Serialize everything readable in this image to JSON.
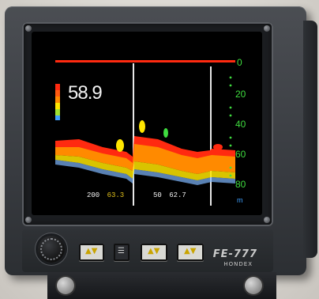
{
  "device": {
    "model_label": "FE-777",
    "brand_label": "HONDEX",
    "bezel_color": "#3f4247",
    "screen_color": "#000000"
  },
  "display": {
    "depth_readout": "58.9",
    "range_left_value": "200",
    "range_left_reading": "63.3",
    "range_right_value": "50",
    "range_right_reading": "62.7",
    "scale_ticks": [
      "0",
      "20",
      "40",
      "60",
      "80"
    ],
    "scale_unit": "m",
    "colors": {
      "scale_green": "#3fdc3f",
      "readout_yellow": "#e3c21b",
      "seabed_red": "#ff2a10",
      "seabed_orange": "#ff8a00",
      "seabed_yellow": "#ffe600",
      "fish_blue": "#3fa0ff"
    }
  },
  "controls": {
    "knob_icon": "gain-knob-icon",
    "keys": [
      {
        "icon": "up-down-arrow-icon"
      },
      {
        "icon": "mode-icon"
      },
      {
        "icon": "up-down-arrow-icon"
      },
      {
        "icon": "up-down-arrow-icon"
      }
    ]
  }
}
